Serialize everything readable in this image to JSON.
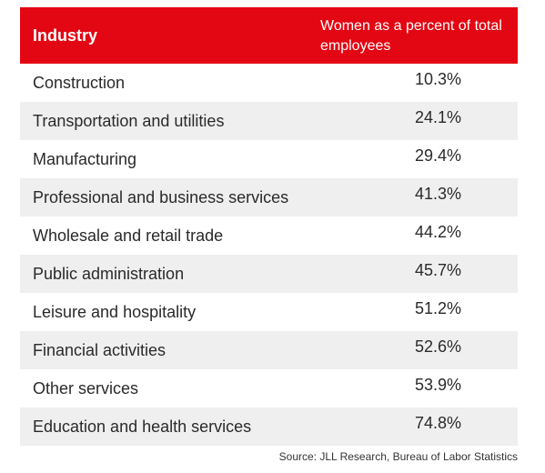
{
  "chart_data": {
    "type": "table",
    "columns": [
      "Industry",
      "Women as a percent of total employees"
    ],
    "header_color": "#e30613",
    "stripe_color": "#efefef",
    "rows": [
      {
        "industry": "Construction",
        "percent": "10.3%"
      },
      {
        "industry": "Transportation and utilities",
        "percent": "24.1%"
      },
      {
        "industry": "Manufacturing",
        "percent": "29.4%"
      },
      {
        "industry": "Professional and business services",
        "percent": "41.3%"
      },
      {
        "industry": "Wholesale and retail trade",
        "percent": "44.2%"
      },
      {
        "industry": "Public administration",
        "percent": "45.7%"
      },
      {
        "industry": "Leisure and hospitality",
        "percent": "51.2%"
      },
      {
        "industry": "Financial activities",
        "percent": "52.6%"
      },
      {
        "industry": "Other services",
        "percent": "53.9%"
      },
      {
        "industry": "Education and health services",
        "percent": "74.8%"
      }
    ],
    "source": "Source: JLL Research, Bureau of Labor Statistics"
  }
}
